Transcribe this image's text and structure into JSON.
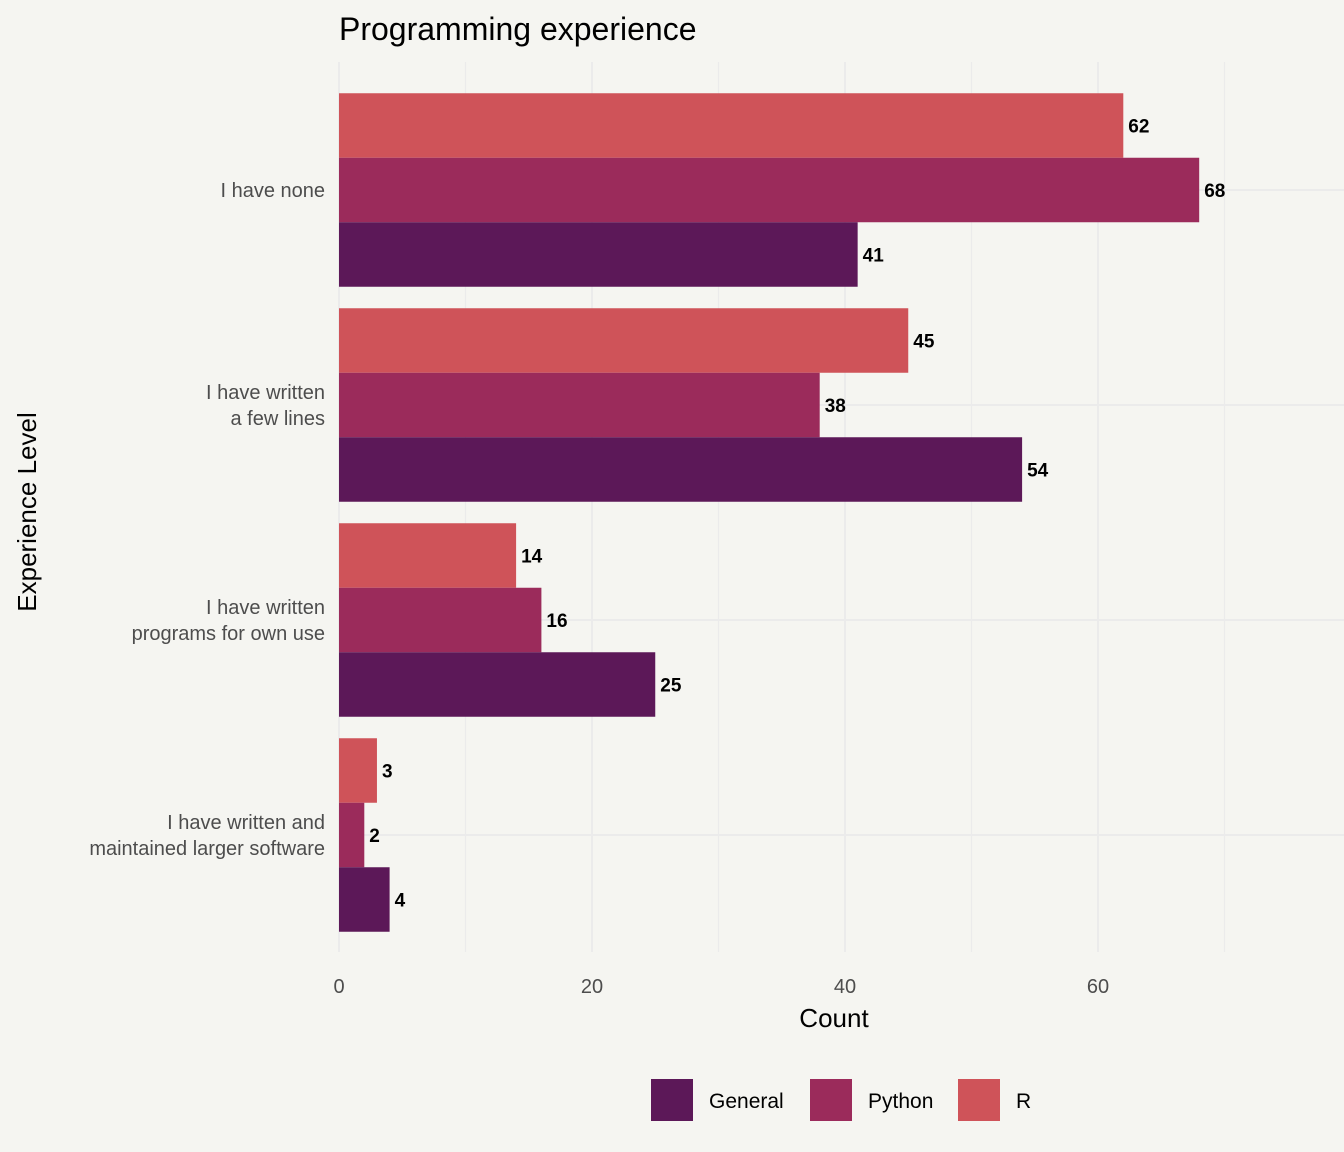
{
  "chart_data": {
    "type": "bar",
    "orientation": "horizontal",
    "title": "Programming experience",
    "xlabel": "Count",
    "ylabel": "Experience Level",
    "xlim": [
      0,
      79
    ],
    "xticks": [
      0,
      20,
      40,
      60
    ],
    "grid": true,
    "legend_position": "bottom",
    "categories": [
      [
        "I have none"
      ],
      [
        "I have written",
        "a few lines"
      ],
      [
        "I have written",
        "programs for own use"
      ],
      [
        "I have written and",
        "maintained larger software"
      ]
    ],
    "series": [
      {
        "name": "R",
        "color": "#cf5359",
        "values": [
          62,
          45,
          14,
          3
        ]
      },
      {
        "name": "Python",
        "color": "#9b2b5b",
        "values": [
          68,
          38,
          16,
          2
        ]
      },
      {
        "name": "General",
        "color": "#5c1858",
        "values": [
          41,
          54,
          25,
          4
        ]
      }
    ],
    "legend_order": [
      "General",
      "Python",
      "R"
    ]
  }
}
